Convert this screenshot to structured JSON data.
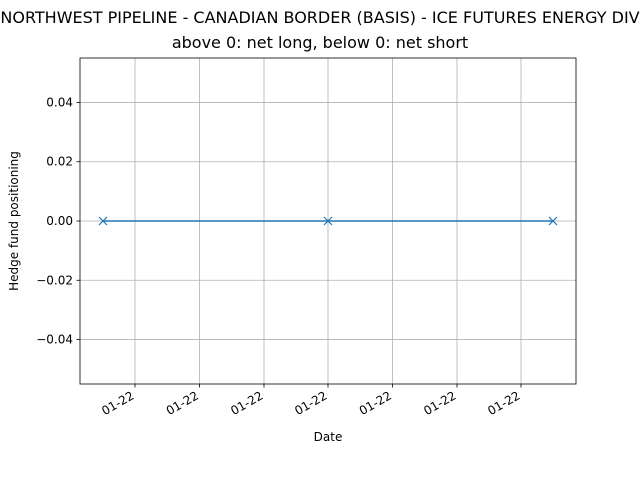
{
  "chart_data": {
    "type": "line",
    "title": "NORTHWEST PIPELINE - CANADIAN BORDER (BASIS) - ICE FUTURES ENERGY DIV",
    "subtitle": "above 0: net long, below 0: net short",
    "xlabel": "Date",
    "ylabel": "Hedge fund positioning",
    "x_tick_labels": [
      "01-22",
      "01-22",
      "01-22",
      "01-22",
      "01-22",
      "01-22",
      "01-22"
    ],
    "y_ticks": [
      -0.04,
      -0.02,
      0.0,
      0.02,
      0.04
    ],
    "y_tick_labels": [
      "−0.04",
      "−0.02",
      "0.00",
      "0.02",
      "0.04"
    ],
    "ylim": [
      -0.055,
      0.055
    ],
    "grid": true,
    "marker": "x",
    "color": "#1f77b4",
    "series": [
      {
        "x": [
          "2022-01-04",
          "2022-01-11",
          "2022-01-18"
        ],
        "values": [
          0,
          0,
          0
        ]
      }
    ]
  }
}
